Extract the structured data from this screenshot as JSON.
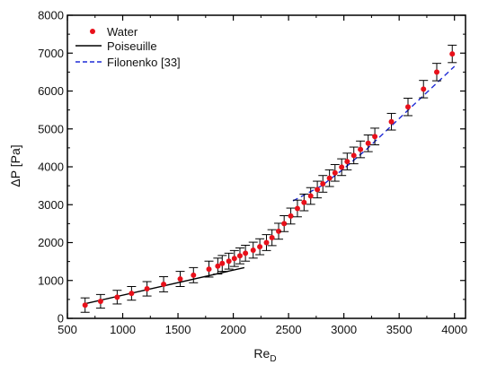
{
  "chart_data": {
    "type": "scatter",
    "title": "",
    "xlabel": "Re",
    "xlabel_sub": "D",
    "ylabel": "ΔP [Pa]",
    "xlim": [
      500,
      4100
    ],
    "ylim": [
      0,
      8000
    ],
    "xticks": [
      500,
      1000,
      1500,
      2000,
      2500,
      3000,
      3500,
      4000
    ],
    "yticks": [
      0,
      1000,
      2000,
      3000,
      4000,
      5000,
      6000,
      7000,
      8000
    ],
    "grid": false,
    "legend_position": "top-left",
    "legend": [
      {
        "label": "Water",
        "marker": "dot",
        "color": "#e8101a"
      },
      {
        "label": "Poiseuille",
        "marker": "solid-line",
        "color": "#000000"
      },
      {
        "label": "Filonenko [33]",
        "marker": "dashed-line",
        "color": "#1f2bd6"
      }
    ],
    "series": [
      {
        "name": "Water",
        "kind": "scatter-errorbar",
        "color": "#e8101a",
        "points": [
          {
            "x": 660,
            "y": 350,
            "err": 190
          },
          {
            "x": 800,
            "y": 450,
            "err": 180
          },
          {
            "x": 950,
            "y": 560,
            "err": 180
          },
          {
            "x": 1080,
            "y": 660,
            "err": 180
          },
          {
            "x": 1220,
            "y": 780,
            "err": 190
          },
          {
            "x": 1370,
            "y": 900,
            "err": 200
          },
          {
            "x": 1520,
            "y": 1040,
            "err": 200
          },
          {
            "x": 1640,
            "y": 1140,
            "err": 200
          },
          {
            "x": 1780,
            "y": 1300,
            "err": 210
          },
          {
            "x": 1860,
            "y": 1380,
            "err": 210
          },
          {
            "x": 1900,
            "y": 1450,
            "err": 210
          },
          {
            "x": 1960,
            "y": 1510,
            "err": 210
          },
          {
            "x": 2010,
            "y": 1580,
            "err": 210
          },
          {
            "x": 2060,
            "y": 1650,
            "err": 210
          },
          {
            "x": 2110,
            "y": 1720,
            "err": 210
          },
          {
            "x": 2180,
            "y": 1800,
            "err": 210
          },
          {
            "x": 2240,
            "y": 1890,
            "err": 210
          },
          {
            "x": 2300,
            "y": 2000,
            "err": 210
          },
          {
            "x": 2350,
            "y": 2130,
            "err": 210
          },
          {
            "x": 2410,
            "y": 2300,
            "err": 210
          },
          {
            "x": 2460,
            "y": 2500,
            "err": 210
          },
          {
            "x": 2520,
            "y": 2700,
            "err": 210
          },
          {
            "x": 2580,
            "y": 2900,
            "err": 220
          },
          {
            "x": 2640,
            "y": 3060,
            "err": 220
          },
          {
            "x": 2700,
            "y": 3230,
            "err": 220
          },
          {
            "x": 2760,
            "y": 3400,
            "err": 220
          },
          {
            "x": 2810,
            "y": 3550,
            "err": 220
          },
          {
            "x": 2870,
            "y": 3700,
            "err": 220
          },
          {
            "x": 2920,
            "y": 3840,
            "err": 220
          },
          {
            "x": 2980,
            "y": 3990,
            "err": 220
          },
          {
            "x": 3030,
            "y": 4140,
            "err": 220
          },
          {
            "x": 3090,
            "y": 4300,
            "err": 220
          },
          {
            "x": 3150,
            "y": 4460,
            "err": 220
          },
          {
            "x": 3220,
            "y": 4620,
            "err": 220
          },
          {
            "x": 3280,
            "y": 4800,
            "err": 220
          },
          {
            "x": 3430,
            "y": 5190,
            "err": 220
          },
          {
            "x": 3580,
            "y": 5580,
            "err": 230
          },
          {
            "x": 3720,
            "y": 6050,
            "err": 230
          },
          {
            "x": 3840,
            "y": 6500,
            "err": 230
          },
          {
            "x": 3980,
            "y": 6980,
            "err": 230
          }
        ]
      },
      {
        "name": "Poiseuille",
        "kind": "line",
        "style": "solid",
        "color": "#000000",
        "x": [
          650,
          2100
        ],
        "y": [
          380,
          1340
        ]
      },
      {
        "name": "Filonenko [33]",
        "kind": "line",
        "style": "dashed",
        "color": "#1f2bd6",
        "x": [
          2540,
          2800,
          3000,
          3200,
          3400,
          3600,
          3800,
          4000
        ],
        "y": [
          3100,
          3500,
          3950,
          4450,
          5000,
          5550,
          6100,
          6650
        ]
      }
    ]
  }
}
